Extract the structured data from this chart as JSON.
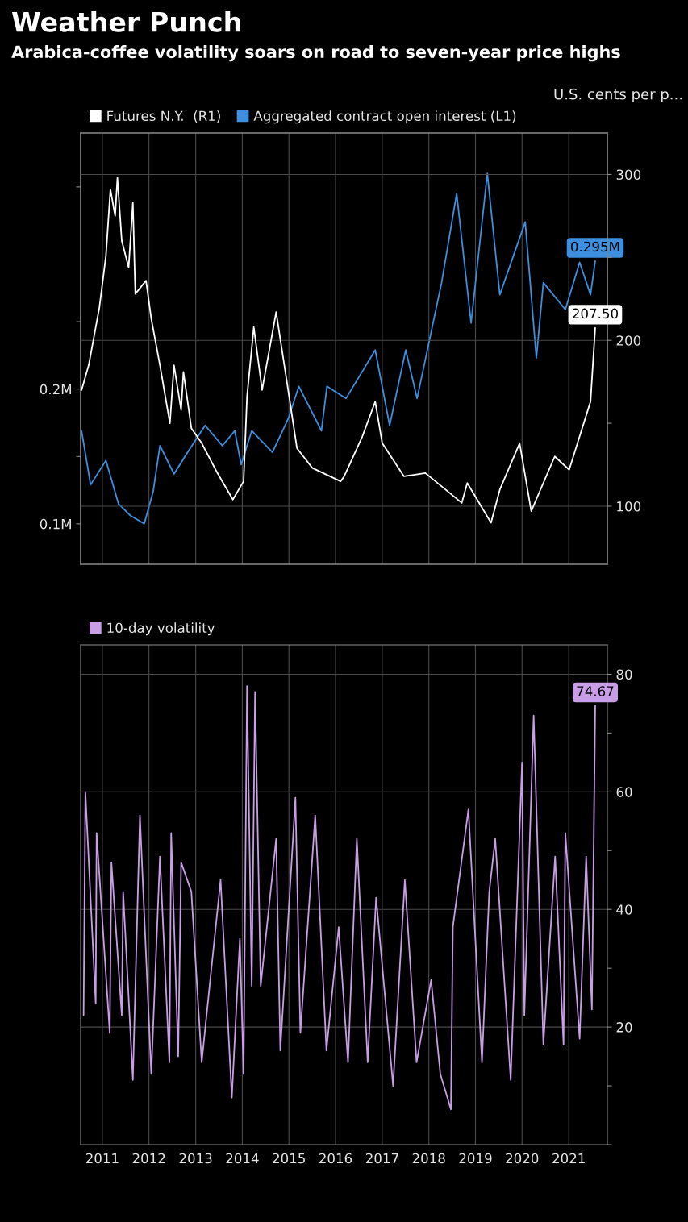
{
  "chart_data": [
    {
      "type": "line",
      "title": "Weather Punch",
      "subtitle": "Arabica-coffee volatility soars on road to seven-year price highs",
      "y2label": "U.S. cents per p...",
      "legend": "top left",
      "grid": true,
      "tick_labels": "y",
      "xlim": [
        "2010-07-15",
        "2021-10-30"
      ],
      "xticks": [
        {
          "value": "2011-01-01",
          "label": null
        },
        {
          "value": "2012-01-01",
          "label": null
        },
        {
          "value": "2013-01-01",
          "label": null
        },
        {
          "value": "2014-01-01",
          "label": null
        },
        {
          "value": "2015-01-01",
          "label": null
        },
        {
          "value": "2016-01-01",
          "label": null
        },
        {
          "value": "2017-01-01",
          "label": null
        },
        {
          "value": "2018-01-01",
          "label": null
        },
        {
          "value": "2019-01-01",
          "label": null
        },
        {
          "value": "2020-01-01",
          "label": null
        },
        {
          "value": "2021-01-01",
          "label": null
        }
      ],
      "ylim": [
        0.07,
        0.39
      ],
      "yticks": [
        {
          "value": 0.1,
          "label": "0.1M"
        },
        {
          "value": 0.15,
          "label": null
        },
        {
          "value": 0.2,
          "label": "0.2M"
        },
        {
          "value": 0.25,
          "label": null
        },
        {
          "value": 0.35,
          "label": null
        }
      ],
      "y2lim": [
        65,
        325
      ],
      "y2ticks": [
        100,
        {
          "value": 150,
          "label": null
        },
        200,
        {
          "value": 250,
          "label": null
        },
        300
      ],
      "series": [
        {
          "name": "Futures N.Y.  (R1)",
          "color": "#ffffff",
          "axis": "y2",
          "x": [
            "2010-07-22",
            "2010-09-16",
            "2010-12-09",
            "2011-01-29",
            "2011-03-05",
            "2011-04-11",
            "2011-04-29",
            "2011-06-02",
            "2011-07-26",
            "2011-08-28",
            "2011-09-16",
            "2011-12-09",
            "2012-01-19",
            "2012-03-27",
            "2012-06-13",
            "2012-07-15",
            "2012-09-09",
            "2012-09-27",
            "2012-11-28",
            "2013-02-17",
            "2013-06-20",
            "2013-10-19",
            "2014-01-11",
            "2014-02-07",
            "2014-04-01",
            "2014-06-05",
            "2014-09-23",
            "2015-01-11",
            "2015-03-05",
            "2015-07-04",
            "2016-02-10",
            "2016-03-09",
            "2016-07-29",
            "2016-11-07",
            "2017-01-01",
            "2017-06-20",
            "2017-12-05",
            "2018-09-16",
            "2018-10-29",
            "2019-05-03",
            "2019-07-11",
            "2019-12-13",
            "2020-03-13",
            "2020-09-13",
            "2021-01-04",
            "2021-06-20",
            "2021-07-27"
          ],
          "values": [
            170,
            185,
            220,
            251,
            291,
            275,
            298,
            260,
            244,
            283,
            228,
            236,
            213,
            185,
            150,
            185,
            158,
            181,
            147,
            138,
            120,
            104,
            115,
            166,
            208,
            170,
            217,
            162,
            135,
            123,
            115,
            118,
            142,
            163,
            138,
            118,
            120,
            102,
            114,
            90,
            110,
            138,
            97,
            130,
            122,
            163,
            207.5
          ],
          "value_labels": [
            null,
            null,
            null,
            null,
            null,
            null,
            null,
            null,
            null,
            null,
            null,
            null,
            null,
            null,
            null,
            null,
            null,
            null,
            null,
            null,
            null,
            null,
            null,
            null,
            null,
            null,
            null,
            null,
            null,
            null,
            null,
            null,
            null,
            null,
            null,
            null,
            null,
            null,
            null,
            null,
            null,
            null,
            null,
            null,
            null,
            null,
            "207.50"
          ]
        },
        {
          "name": "Aggregated contract open interest (L1)",
          "color": "#3d8fe0",
          "axis": "y",
          "x": [
            "2010-07-22",
            "2010-10-01",
            "2011-01-29",
            "2011-05-07",
            "2011-08-10",
            "2011-11-25",
            "2012-02-03",
            "2012-03-27",
            "2012-07-15",
            "2012-10-29",
            "2013-03-16",
            "2013-07-29",
            "2013-11-03",
            "2013-12-23",
            "2014-03-16",
            "2014-08-25",
            "2014-12-27",
            "2015-03-20",
            "2015-09-13",
            "2015-10-26",
            "2016-03-23",
            "2016-11-07",
            "2017-02-28",
            "2017-07-04",
            "2017-10-01",
            "2018-04-11",
            "2018-08-07",
            "2018-11-28",
            "2019-04-04",
            "2019-07-11",
            "2020-01-26",
            "2020-04-22",
            "2020-06-16",
            "2020-12-05",
            "2021-03-27",
            "2021-06-20",
            "2021-07-27"
          ],
          "values": [
            0.169,
            0.129,
            0.147,
            0.115,
            0.106,
            0.1,
            0.124,
            0.158,
            0.137,
            0.153,
            0.173,
            0.158,
            0.169,
            0.144,
            0.169,
            0.153,
            0.178,
            0.202,
            0.169,
            0.202,
            0.193,
            0.229,
            0.173,
            0.229,
            0.193,
            0.279,
            0.345,
            0.249,
            0.36,
            0.27,
            0.324,
            0.223,
            0.279,
            0.259,
            0.294,
            0.27,
            0.295
          ],
          "value_labels": [
            null,
            null,
            null,
            null,
            null,
            null,
            null,
            null,
            null,
            null,
            null,
            null,
            null,
            null,
            null,
            null,
            null,
            null,
            null,
            null,
            null,
            null,
            null,
            null,
            null,
            null,
            null,
            null,
            null,
            null,
            null,
            null,
            null,
            null,
            null,
            null,
            "0.295M"
          ]
        }
      ]
    },
    {
      "type": "line",
      "legend": "top left",
      "grid": true,
      "xlim": [
        "2010-07-15",
        "2021-10-30"
      ],
      "xticks": [
        {
          "value": "2011-01-01",
          "label": "2011"
        },
        {
          "value": "2012-01-01",
          "label": "2012"
        },
        {
          "value": "2013-01-01",
          "label": "2013"
        },
        {
          "value": "2014-01-01",
          "label": "2014"
        },
        {
          "value": "2015-01-01",
          "label": "2015"
        },
        {
          "value": "2016-01-01",
          "label": "2016"
        },
        {
          "value": "2017-01-01",
          "label": "2017"
        },
        {
          "value": "2018-01-01",
          "label": "2018"
        },
        {
          "value": "2019-01-01",
          "label": "2019"
        },
        {
          "value": "2020-01-01",
          "label": "2020"
        },
        {
          "value": "2021-01-01",
          "label": "2021"
        }
      ],
      "ylim": [
        0,
        85
      ],
      "yticks": [
        {
          "value": 0,
          "label": null
        },
        {
          "value": 10,
          "label": null
        },
        20,
        {
          "value": 30,
          "label": null
        },
        40,
        {
          "value": 50,
          "label": null
        },
        60,
        {
          "value": 70,
          "label": null
        },
        80
      ],
      "x": [
        "2010-08-07",
        "2010-08-21",
        "2010-11-10",
        "2010-11-17",
        "2011-02-28",
        "2011-03-13",
        "2011-06-02",
        "2011-06-13",
        "2011-08-28",
        "2011-10-22",
        "2012-01-19",
        "2012-03-27",
        "2012-06-09",
        "2012-06-23",
        "2012-08-17",
        "2012-09-09",
        "2012-11-28",
        "2013-02-17",
        "2013-07-15",
        "2013-10-11",
        "2013-12-13",
        "2014-01-11",
        "2014-02-07",
        "2014-03-16",
        "2014-04-11",
        "2014-05-25",
        "2014-09-23",
        "2014-10-26",
        "2015-02-21",
        "2015-04-01",
        "2015-07-26",
        "2015-10-22",
        "2016-01-26",
        "2016-04-08",
        "2016-06-16",
        "2016-09-09",
        "2016-11-14",
        "2017-03-27",
        "2017-06-27",
        "2017-09-27",
        "2018-01-19",
        "2018-04-01",
        "2018-06-23",
        "2018-07-08",
        "2018-11-07",
        "2019-02-21",
        "2019-04-19",
        "2019-06-05",
        "2019-10-04",
        "2020-01-01",
        "2020-01-19",
        "2020-04-01",
        "2020-06-16",
        "2020-09-16",
        "2020-11-21",
        "2020-12-05",
        "2021-03-27",
        "2021-05-17",
        "2021-07-01",
        "2021-07-27"
      ],
      "series": [
        {
          "name": "10-day volatility",
          "color": "#c99ee6",
          "values": [
            22,
            60,
            24,
            53,
            19,
            48,
            22,
            43,
            11,
            56,
            12,
            49,
            14,
            53,
            15,
            48,
            43,
            14,
            45,
            8,
            35,
            12,
            78,
            27,
            77,
            27,
            52,
            16,
            59,
            19,
            56,
            16,
            37,
            14,
            52,
            14,
            42,
            10,
            45,
            14,
            28,
            12,
            6,
            37,
            57,
            14,
            43,
            52,
            11,
            65,
            22,
            73,
            17,
            49,
            17,
            53,
            18,
            49,
            23,
            74.67
          ],
          "value_labels": [
            null,
            null,
            null,
            null,
            null,
            null,
            null,
            null,
            null,
            null,
            null,
            null,
            null,
            null,
            null,
            null,
            null,
            null,
            null,
            null,
            null,
            null,
            null,
            null,
            null,
            null,
            null,
            null,
            null,
            null,
            null,
            null,
            null,
            null,
            null,
            null,
            null,
            null,
            null,
            null,
            null,
            null,
            null,
            null,
            null,
            null,
            null,
            null,
            null,
            null,
            null,
            null,
            null,
            null,
            null,
            null,
            null,
            null,
            null,
            "74.67"
          ]
        }
      ]
    }
  ]
}
